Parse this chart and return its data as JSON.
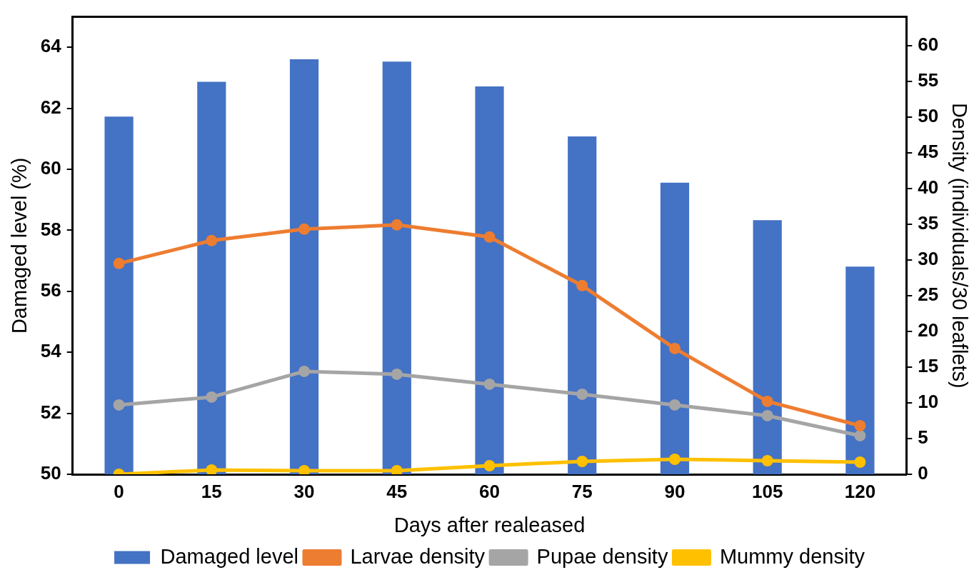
{
  "chart_data": {
    "type": "bar",
    "xlabel": "Days after realeased",
    "ylabel": "Damaged level (%)",
    "y2label": "Density (individuals/30 leaflets)",
    "categories": [
      "0",
      "15",
      "30",
      "45",
      "60",
      "75",
      "90",
      "105",
      "120"
    ],
    "series": [
      {
        "name": "Damaged level",
        "color": "#4472c4",
        "values": [
          61.73,
          62.87,
          63.61,
          63.53,
          62.72,
          61.08,
          59.56,
          58.33,
          56.81
        ]
      },
      {
        "name": "Larvae density",
        "type": "line",
        "axis": "y2",
        "color": "#ed7d31",
        "values": [
          29.5,
          32.7,
          34.3,
          34.9,
          33.2,
          26.4,
          17.6,
          10.2,
          6.8
        ]
      },
      {
        "name": "Pupae density",
        "type": "line",
        "axis": "y2",
        "color": "#a5a5a5",
        "values": [
          9.7,
          10.8,
          14.4,
          14.0,
          12.6,
          11.2,
          9.7,
          8.2,
          5.4
        ]
      },
      {
        "name": "Mummy density",
        "type": "line",
        "axis": "y2",
        "color": "#ffc000",
        "values": [
          0,
          0.6,
          0.5,
          0.5,
          1.2,
          1.8,
          2.1,
          1.9,
          1.7
        ]
      }
    ],
    "ylim": [
      50,
      65
    ],
    "yticks": [
      50,
      52,
      54,
      56,
      58,
      60,
      62,
      64
    ],
    "y2lim": [
      0,
      64
    ],
    "y2ticks": [
      0,
      5,
      10,
      15,
      20,
      25,
      30,
      35,
      40,
      45,
      50,
      55,
      60
    ],
    "grid": false,
    "legend": "bottom",
    "marker": "circle",
    "line_style": "solid"
  }
}
